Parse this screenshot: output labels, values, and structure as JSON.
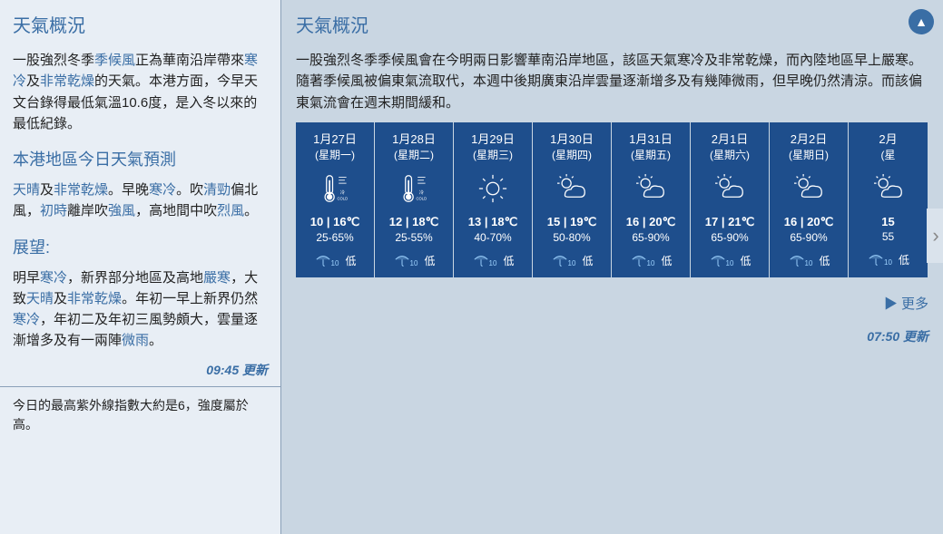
{
  "left": {
    "title": "天氣概況",
    "p1_a": "一股強烈冬季",
    "p1_link1": "季候風",
    "p1_b": "正為華南沿岸帶來",
    "p1_link2": "寒冷",
    "p1_c": "及",
    "p1_link3": "非常乾燥",
    "p1_d": "的天氣。本港方面，今早天文台錄得最低氣溫10.6度，是入冬以來的最低紀錄。",
    "h3a": "本港地區今日天氣預測",
    "p2_link1": "天晴",
    "p2_a": "及",
    "p2_link2": "非常乾燥",
    "p2_b": "。早晚",
    "p2_link3": "寒冷",
    "p2_c": "。吹",
    "p2_link4": "清勁",
    "p2_d": "偏北風，",
    "p2_link5": "初時",
    "p2_e": "離岸吹",
    "p2_link6": "強風",
    "p2_f": "，高地間中吹",
    "p2_link7": "烈風",
    "p2_g": "。",
    "h3b": "展望:",
    "p3_a": "明早",
    "p3_link1": "寒冷",
    "p3_b": "，新界部分地區及高地",
    "p3_link2": "嚴寒",
    "p3_c": "，大致",
    "p3_link3": "天晴",
    "p3_d": "及",
    "p3_link4": "非常乾燥",
    "p3_e": "。年初一早上新界仍然",
    "p3_link5": "寒冷",
    "p3_f": "，年初二及年初三風勢頗大，雲量逐漸增多及有一兩陣",
    "p3_link6": "微雨",
    "p3_g": "。",
    "update": "09:45 更新",
    "uv": "今日的最高紫外線指數大約是6，強度屬於高。"
  },
  "right": {
    "title": "天氣概況",
    "summary": "一股強烈冬季季候風會在今明兩日影響華南沿岸地區，該區天氣寒冷及非常乾燥，而內陸地區早上嚴寒。隨著季候風被偏東氣流取代，本週中後期廣東沿岸雲量逐漸增多及有幾陣微雨，但早晚仍然清涼。而該偏東氣流會在週末期間緩和。",
    "more": "▶ 更多",
    "update": "07:50 更新",
    "rain_label": "低",
    "rain_sub": "10",
    "forecast": [
      {
        "date": "1月27日",
        "dow": "(星期一)",
        "icon": "cold",
        "temp": "10 | 16℃",
        "hum": "25-65%"
      },
      {
        "date": "1月28日",
        "dow": "(星期二)",
        "icon": "cold",
        "temp": "12 | 18℃",
        "hum": "25-55%"
      },
      {
        "date": "1月29日",
        "dow": "(星期三)",
        "icon": "sun",
        "temp": "13 | 18℃",
        "hum": "40-70%"
      },
      {
        "date": "1月30日",
        "dow": "(星期四)",
        "icon": "suncloud",
        "temp": "15 | 19℃",
        "hum": "50-80%"
      },
      {
        "date": "1月31日",
        "dow": "(星期五)",
        "icon": "suncloud",
        "temp": "16 | 20℃",
        "hum": "65-90%"
      },
      {
        "date": "2月1日",
        "dow": "(星期六)",
        "icon": "suncloud",
        "temp": "17 | 21℃",
        "hum": "65-90%"
      },
      {
        "date": "2月2日",
        "dow": "(星期日)",
        "icon": "suncloud",
        "temp": "16 | 20℃",
        "hum": "65-90%"
      },
      {
        "date": "2月",
        "dow": "(星",
        "icon": "suncloud",
        "temp": "15",
        "hum": "55"
      }
    ]
  }
}
